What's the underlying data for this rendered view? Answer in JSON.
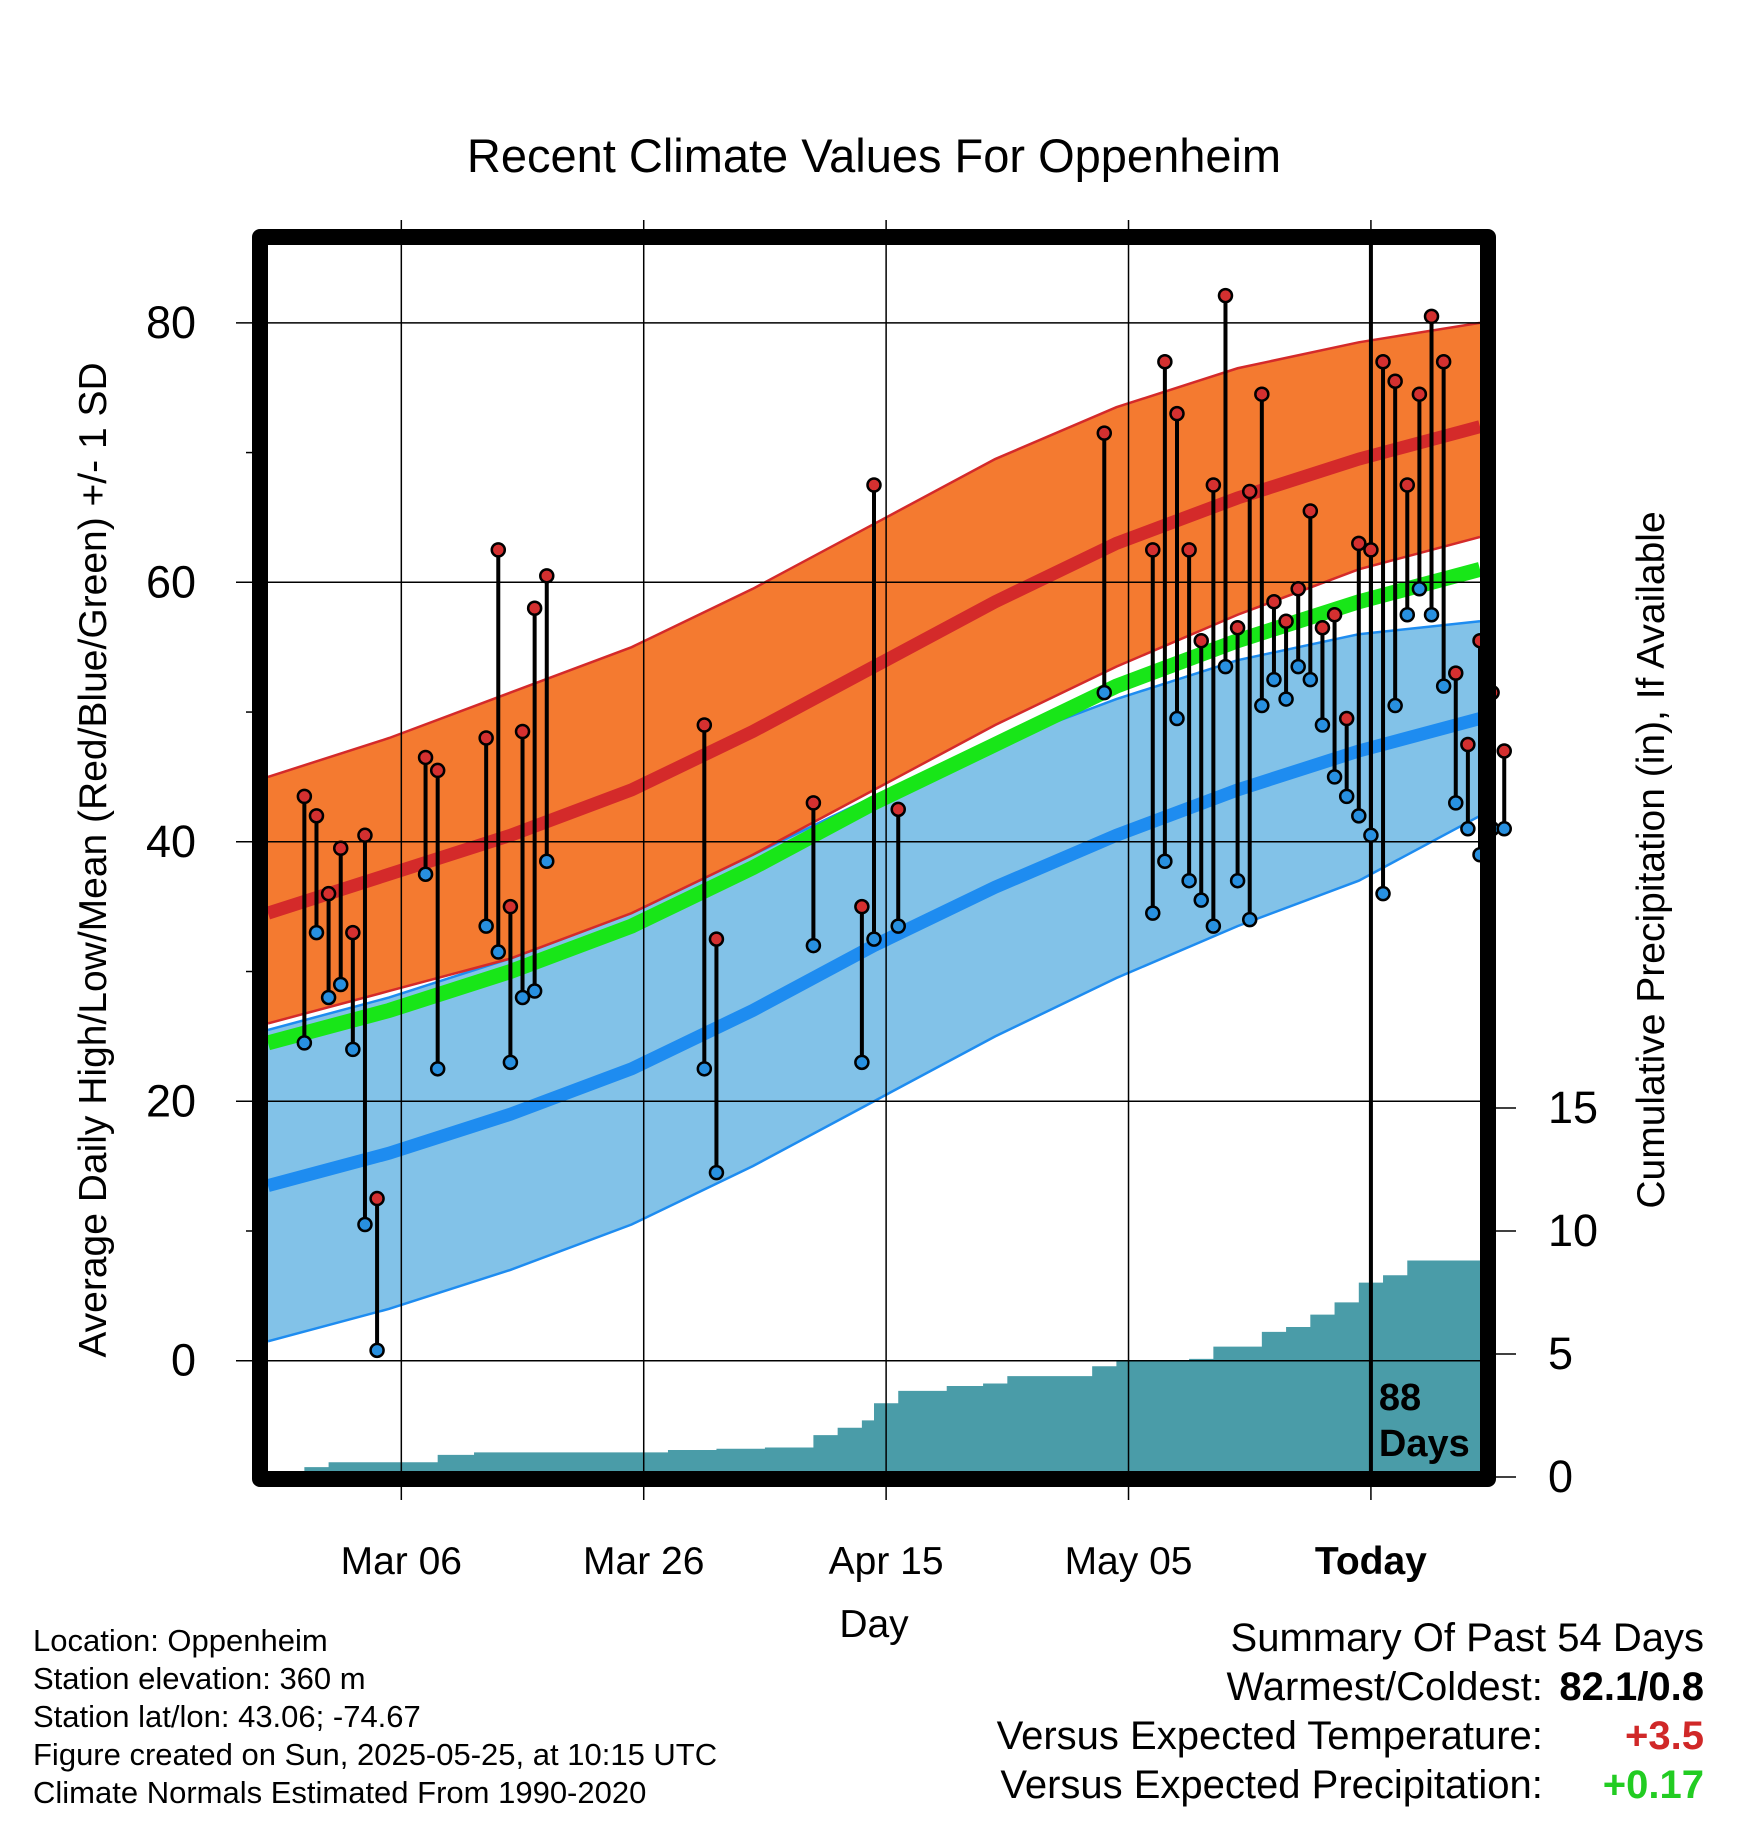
{
  "title": "Recent Climate Values For Oppenheim",
  "chart_data": {
    "type": "line",
    "title": "Recent Climate Values For Oppenheim",
    "xlabel": "Day",
    "ylabel_left": "Average Daily High/Low/Mean (Red/Blue/Green) +/- 1 SD",
    "ylabel_right": "Cumulative Precipitation (in), If Available",
    "x_ticks": [
      "Mar 06",
      "Mar 26",
      "Apr 15",
      "May 05",
      "Today"
    ],
    "x_range_days": [
      -91,
      9
    ],
    "y_left_ticks": [
      0,
      20,
      40,
      60,
      80
    ],
    "y_left_range": [
      -8.5,
      86
    ],
    "y_right_ticks": [
      0,
      5,
      10,
      15
    ],
    "today_label": "88 Days",
    "normals": {
      "day": [
        -91,
        -81,
        -71,
        -61,
        -51,
        -41,
        -31,
        -21,
        -11,
        -1,
        9
      ],
      "high_mean": [
        34.5,
        37.5,
        40.5,
        44.0,
        48.5,
        53.5,
        58.5,
        63.0,
        66.5,
        69.5,
        72.0
      ],
      "high_plus_sd": [
        45.0,
        48.0,
        51.5,
        55.0,
        59.5,
        64.5,
        69.5,
        73.5,
        76.5,
        78.5,
        80.0
      ],
      "high_minus_sd": [
        26.0,
        28.5,
        31.0,
        34.5,
        39.0,
        44.0,
        49.0,
        53.5,
        57.5,
        61.0,
        63.5
      ],
      "mean": [
        24.5,
        27.0,
        30.0,
        33.5,
        38.0,
        43.0,
        47.5,
        52.0,
        55.5,
        58.5,
        61.0
      ],
      "low_mean": [
        13.5,
        16.0,
        19.0,
        22.5,
        27.0,
        32.0,
        36.5,
        40.5,
        44.0,
        47.0,
        49.5
      ],
      "low_plus_sd": [
        25.5,
        28.0,
        31.0,
        34.5,
        39.0,
        43.5,
        47.5,
        51.0,
        54.0,
        56.0,
        57.0
      ],
      "low_minus_sd": [
        1.5,
        4.0,
        7.0,
        10.5,
        15.0,
        20.0,
        25.0,
        29.5,
        33.5,
        37.0,
        42.0
      ]
    },
    "observed": {
      "day": [
        -88,
        -87,
        -86,
        -85,
        -84,
        -83,
        -82,
        -81,
        -78,
        -77,
        -73,
        -72,
        -71,
        -70,
        -69,
        -68,
        -65,
        -55,
        -54,
        -46,
        -42,
        -41,
        -39,
        -22,
        -18,
        -17,
        -16,
        -15,
        -14,
        -13,
        -12,
        -11,
        -10,
        -9,
        -8,
        -7,
        -6,
        -5,
        -4,
        -3,
        -2,
        -1,
        0,
        1,
        2,
        3,
        4,
        5,
        6,
        7,
        8,
        9,
        10,
        11
      ],
      "high": [
        43.5,
        42.0,
        36.0,
        39.5,
        33.0,
        40.5,
        12.5,
        null,
        46.5,
        45.5,
        48.0,
        62.5,
        35.0,
        48.5,
        58.0,
        60.5,
        null,
        49.0,
        32.5,
        43.0,
        35.0,
        67.5,
        42.5,
        71.5,
        62.5,
        77.0,
        73.0,
        62.5,
        55.5,
        67.5,
        82.1,
        56.5,
        67.0,
        74.5,
        58.5,
        57.0,
        59.5,
        65.5,
        56.5,
        57.5,
        49.5,
        63.0,
        62.5,
        77.0,
        75.5,
        67.5,
        74.5,
        80.5,
        77.0,
        53.0,
        47.5,
        55.5,
        51.5,
        47.0
      ],
      "low": [
        24.5,
        33.0,
        28.0,
        29.0,
        24.0,
        10.5,
        0.8,
        null,
        37.5,
        22.5,
        33.5,
        31.5,
        23.0,
        28.0,
        28.5,
        38.5,
        null,
        22.5,
        14.5,
        32.0,
        23.0,
        32.5,
        33.5,
        51.5,
        34.5,
        38.5,
        49.5,
        37.0,
        35.5,
        33.5,
        53.5,
        37.0,
        34.0,
        50.5,
        52.5,
        51.0,
        53.5,
        52.5,
        49.0,
        45.0,
        43.5,
        42.0,
        40.5,
        36.0,
        50.5,
        57.5,
        59.5,
        57.5,
        52.0,
        43.0,
        41.0,
        39.0,
        41.0,
        41.0
      ]
    },
    "precip_cumulative": {
      "day": [
        -90,
        -88,
        -86,
        -79,
        -77,
        -74,
        -64,
        -58,
        -54,
        -50,
        -48,
        -46,
        -44,
        -42,
        -41,
        -39,
        -35,
        -32,
        -30,
        -25,
        -23,
        -21,
        -15,
        -13,
        -11,
        -9,
        -7,
        -5,
        -3,
        -1,
        1,
        3,
        5,
        7,
        9,
        11,
        13,
        15,
        17,
        19,
        21,
        23,
        25,
        27,
        29
      ],
      "inches": [
        0.0,
        0.4,
        0.6,
        0.6,
        0.9,
        1.0,
        1.0,
        1.1,
        1.15,
        1.2,
        1.2,
        1.7,
        2.0,
        2.3,
        3.0,
        3.5,
        3.7,
        3.8,
        4.1,
        4.1,
        4.5,
        4.7,
        4.8,
        5.3,
        5.3,
        5.9,
        6.1,
        6.6,
        7.1,
        7.9,
        8.2,
        8.8,
        8.8,
        8.8,
        8.9,
        9.5,
        9.5,
        9.8,
        10.2,
        10.2,
        10.2,
        10.2,
        10.2,
        10.2,
        10.2
      ]
    }
  },
  "info": {
    "location": "Location: Oppenheim",
    "elevation": "Station elevation: 360 m",
    "latlon": "Station lat/lon: 43.06; -74.67",
    "created": "Figure created on Sun, 2025-05-25, at 10:15 UTC",
    "normals": "Climate Normals Estimated From 1990-2020"
  },
  "summary": {
    "heading": "Summary Of Past 54 Days",
    "extremes_label": "Warmest/Coldest:",
    "extremes_value": "82.1/0.8",
    "temp_label": "Versus Expected Temperature:",
    "temp_value": "+3.5",
    "precip_label": "Versus Expected Precipitation:",
    "precip_value": "+0.17"
  },
  "colors": {
    "high_band": "#f47a30",
    "high_line": "#d42a2a",
    "mean_line": "#18e618",
    "low_band": "#82c2e8",
    "low_line": "#1e8cf0",
    "precip_fill": "#4a9ca8",
    "high_dot": "#d43030",
    "low_dot": "#2890e0",
    "temp_anomaly": "#d02828",
    "precip_anomaly": "#22cc22"
  }
}
